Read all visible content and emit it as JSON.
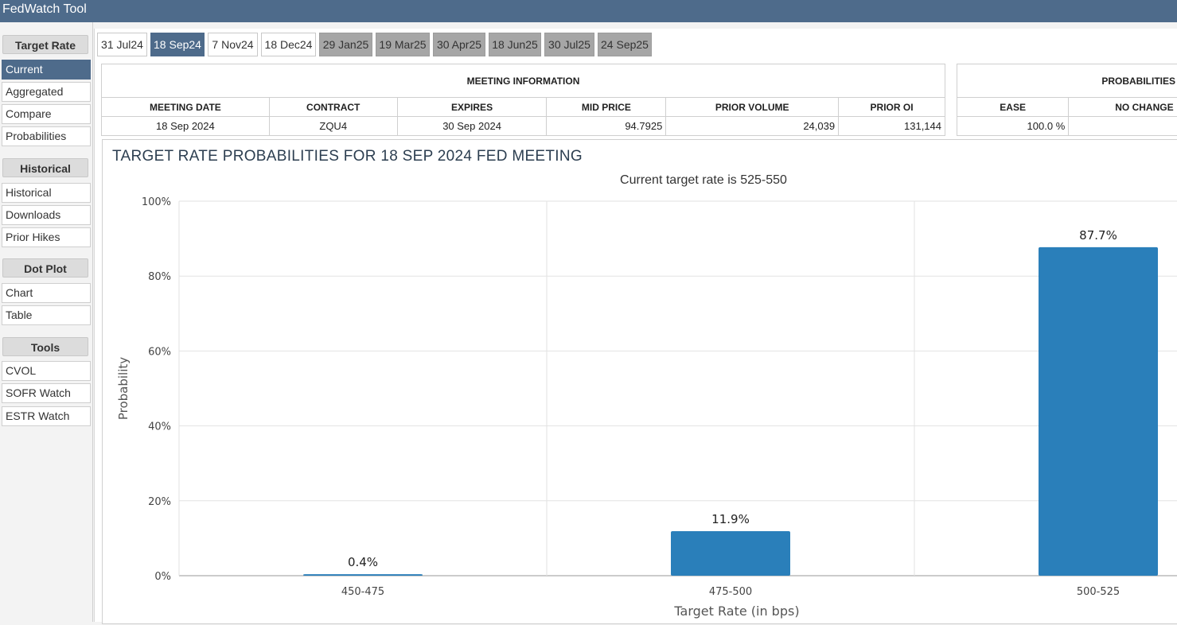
{
  "app": {
    "title": "FedWatch Tool"
  },
  "sidebar": {
    "sections": [
      {
        "title": "Target Rate",
        "items": [
          "Current",
          "Aggregated",
          "Compare",
          "Probabilities"
        ]
      },
      {
        "title": "Historical",
        "items": [
          "Historical",
          "Downloads",
          "Prior Hikes"
        ]
      },
      {
        "title": "Dot Plot",
        "items": [
          "Chart",
          "Table"
        ]
      },
      {
        "title": "Tools",
        "items": [
          "CVOL",
          "SOFR Watch",
          "ESTR Watch"
        ]
      }
    ],
    "active_item": "Current"
  },
  "tabs": [
    "31 Jul24",
    "18 Sep24",
    "7 Nov24",
    "18 Dec24",
    "29 Jan25",
    "19 Mar25",
    "30 Apr25",
    "18 Jun25",
    "30 Jul25",
    "24 Sep25"
  ],
  "meeting_info": {
    "section_title": "MEETING INFORMATION",
    "headers": [
      "MEETING DATE",
      "CONTRACT",
      "EXPIRES",
      "MID PRICE",
      "PRIOR VOLUME",
      "PRIOR OI"
    ],
    "values": [
      "18 Sep 2024",
      "ZQU4",
      "30 Sep 2024",
      "94.7925",
      "24,039",
      "131,144"
    ]
  },
  "probabilities": {
    "section_title": "PROBABILITIES",
    "headers": [
      "EASE",
      "NO CHANGE"
    ],
    "values": [
      "100.0 %",
      ""
    ]
  },
  "colors": {
    "accent": "#4e6b8b",
    "bar": "#2a7fba"
  },
  "chart_data": {
    "type": "bar",
    "title": "TARGET RATE PROBABILITIES FOR 18 SEP 2024 FED MEETING",
    "subtitle": "Current target rate is 525-550",
    "xlabel": "Target Rate (in bps)",
    "ylabel": "Probability",
    "categories": [
      "450-475",
      "475-500",
      "500-525"
    ],
    "values": [
      0.4,
      11.9,
      87.7
    ],
    "data_labels": [
      "0.4%",
      "11.9%",
      "87.7%"
    ],
    "yticks": [
      "0%",
      "20%",
      "40%",
      "60%",
      "80%",
      "100%"
    ],
    "ylim": [
      0,
      100
    ],
    "grid": true
  }
}
